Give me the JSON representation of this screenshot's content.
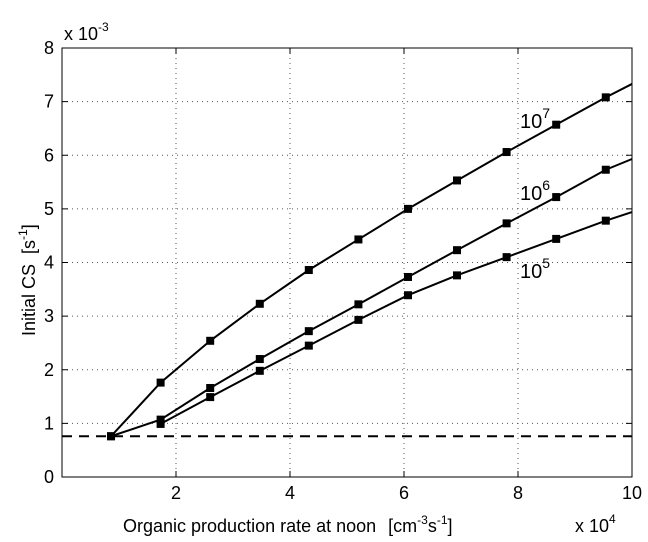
{
  "chart_data": {
    "type": "line",
    "title": "",
    "xlabel": "Organic production rate at noon",
    "xlabel_units_base": "[cm",
    "xlabel_units_exp1": "-3",
    "xlabel_units_mid": "s",
    "xlabel_units_exp2": "-1",
    "xlabel_units_close": "]",
    "ylabel": "Initial CS",
    "ylabel_units_base": "[s",
    "ylabel_units_exp": "-1",
    "ylabel_units_close": "]",
    "x_multiplier_base": "x 10",
    "x_multiplier_exp": "4",
    "y_multiplier_base": "x 10",
    "y_multiplier_exp": "-3",
    "xlim": [
      0,
      10
    ],
    "ylim": [
      0,
      8
    ],
    "x_ticks": [
      2,
      4,
      6,
      8,
      10
    ],
    "y_ticks": [
      0,
      1,
      2,
      3,
      4,
      5,
      6,
      7,
      8
    ],
    "grid": true,
    "series": [
      {
        "label_base": "10",
        "label_exp": "7",
        "x": [
          0.86,
          1.73,
          2.6,
          3.47,
          4.33,
          5.2,
          6.07,
          6.93,
          7.8,
          8.67,
          9.54,
          10.0
        ],
        "y": [
          0.76,
          1.76,
          2.54,
          3.23,
          3.86,
          4.43,
          5.0,
          5.53,
          6.06,
          6.57,
          7.08,
          7.33
        ]
      },
      {
        "label_base": "10",
        "label_exp": "6",
        "x": [
          0.86,
          1.73,
          2.6,
          3.47,
          4.33,
          5.2,
          6.07,
          6.93,
          7.8,
          8.67,
          9.54,
          10.0
        ],
        "y": [
          0.76,
          1.07,
          1.66,
          2.2,
          2.72,
          3.22,
          3.73,
          4.23,
          4.73,
          5.22,
          5.73,
          5.93
        ]
      },
      {
        "label_base": "10",
        "label_exp": "5",
        "x": [
          1.73,
          2.6,
          3.47,
          4.33,
          5.2,
          6.07,
          6.93,
          7.8,
          8.67,
          9.54,
          10.0
        ],
        "y": [
          0.99,
          1.49,
          1.98,
          2.45,
          2.93,
          3.39,
          3.76,
          4.1,
          4.44,
          4.78,
          4.94
        ]
      }
    ],
    "reference_line": {
      "y": 0.76,
      "style": "dashed"
    },
    "colors": {
      "line": "#000000",
      "grid": "#555555",
      "background": "#ffffff"
    }
  }
}
